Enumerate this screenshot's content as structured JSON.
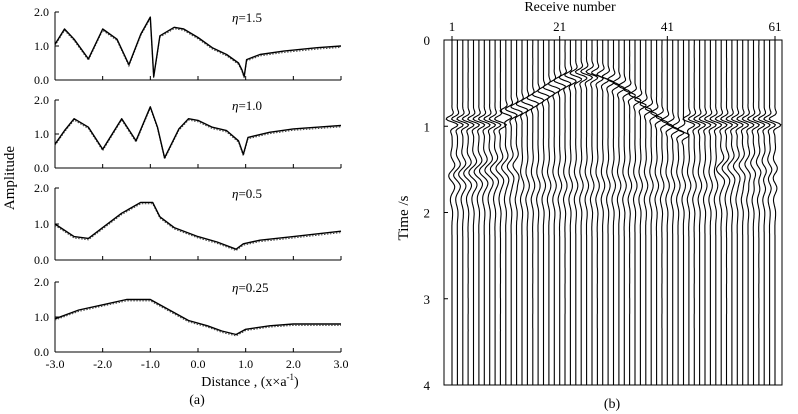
{
  "chart_data": [
    {
      "type": "line",
      "panel_label": "(a)",
      "ylabel": "Amplitude",
      "xlabel": "Distance , (x×a",
      "xlabel_superscript": "-1",
      "xlabel_close": ")",
      "xlim": [
        -3.0,
        3.0
      ],
      "ylim": [
        0.0,
        2.0
      ],
      "x_ticks": [
        "-3.0",
        "-2.0",
        "-1.0",
        "0.0",
        "1.0",
        "2.0",
        "3.0"
      ],
      "y_ticks": [
        "0.0",
        "1.0",
        "2.0"
      ],
      "series_styles": [
        "solid (exact)",
        "dotted (approximate)"
      ],
      "subplots": [
        {
          "label_symbol": "η",
          "label_value": "=1.5",
          "points": [
            [
              -3.0,
              1.05
            ],
            [
              -2.8,
              1.5
            ],
            [
              -2.6,
              1.2
            ],
            [
              -2.3,
              0.62
            ],
            [
              -2.0,
              1.5
            ],
            [
              -1.7,
              1.2
            ],
            [
              -1.45,
              0.45
            ],
            [
              -1.2,
              1.35
            ],
            [
              -1.0,
              1.85
            ],
            [
              -0.93,
              0.1
            ],
            [
              -0.8,
              1.3
            ],
            [
              -0.5,
              1.55
            ],
            [
              -0.3,
              1.5
            ],
            [
              0.0,
              1.25
            ],
            [
              0.3,
              0.95
            ],
            [
              0.6,
              0.75
            ],
            [
              0.85,
              0.5
            ],
            [
              0.92,
              0.3
            ],
            [
              0.97,
              0.1
            ],
            [
              1.02,
              0.6
            ],
            [
              1.3,
              0.75
            ],
            [
              1.8,
              0.85
            ],
            [
              2.5,
              0.95
            ],
            [
              3.0,
              1.0
            ]
          ]
        },
        {
          "label_symbol": "η",
          "label_value": "=1.0",
          "points": [
            [
              -3.0,
              0.7
            ],
            [
              -2.8,
              1.1
            ],
            [
              -2.6,
              1.45
            ],
            [
              -2.3,
              1.2
            ],
            [
              -2.0,
              0.55
            ],
            [
              -1.6,
              1.45
            ],
            [
              -1.3,
              0.8
            ],
            [
              -1.0,
              1.8
            ],
            [
              -0.85,
              1.2
            ],
            [
              -0.7,
              0.3
            ],
            [
              -0.4,
              1.15
            ],
            [
              -0.2,
              1.45
            ],
            [
              0.0,
              1.4
            ],
            [
              0.3,
              1.2
            ],
            [
              0.6,
              1.1
            ],
            [
              0.85,
              0.8
            ],
            [
              0.95,
              0.4
            ],
            [
              1.05,
              0.9
            ],
            [
              1.5,
              1.05
            ],
            [
              2.0,
              1.15
            ],
            [
              2.5,
              1.2
            ],
            [
              3.0,
              1.25
            ]
          ]
        },
        {
          "label_symbol": "η",
          "label_value": "=0.5",
          "points": [
            [
              -3.0,
              1.0
            ],
            [
              -2.6,
              0.65
            ],
            [
              -2.3,
              0.6
            ],
            [
              -2.0,
              0.9
            ],
            [
              -1.6,
              1.3
            ],
            [
              -1.2,
              1.6
            ],
            [
              -0.95,
              1.6
            ],
            [
              -0.8,
              1.2
            ],
            [
              -0.5,
              0.9
            ],
            [
              0.0,
              0.65
            ],
            [
              0.4,
              0.5
            ],
            [
              0.8,
              0.3
            ],
            [
              0.95,
              0.45
            ],
            [
              1.3,
              0.55
            ],
            [
              2.0,
              0.65
            ],
            [
              3.0,
              0.8
            ]
          ]
        },
        {
          "label_symbol": "η",
          "label_value": "=0.25",
          "points": [
            [
              -3.0,
              0.95
            ],
            [
              -2.5,
              1.2
            ],
            [
              -2.0,
              1.35
            ],
            [
              -1.5,
              1.5
            ],
            [
              -1.0,
              1.5
            ],
            [
              -0.6,
              1.2
            ],
            [
              -0.2,
              0.9
            ],
            [
              0.2,
              0.75
            ],
            [
              0.5,
              0.6
            ],
            [
              0.8,
              0.5
            ],
            [
              1.0,
              0.65
            ],
            [
              1.5,
              0.75
            ],
            [
              2.0,
              0.8
            ],
            [
              3.0,
              0.8
            ]
          ]
        }
      ]
    },
    {
      "type": "seismic-wiggle",
      "panel_label": "(b)",
      "title": "Receive number",
      "ylabel": "Time /s",
      "ylim": [
        0,
        4
      ],
      "y_ticks": [
        "0",
        "1",
        "2",
        "3",
        "4"
      ],
      "x_ticks": [
        "1",
        "21",
        "41",
        "61"
      ],
      "receiver_range": [
        1,
        61
      ],
      "traces": 61,
      "event_times_s": [
        0.95,
        0.5,
        1.1
      ]
    }
  ]
}
